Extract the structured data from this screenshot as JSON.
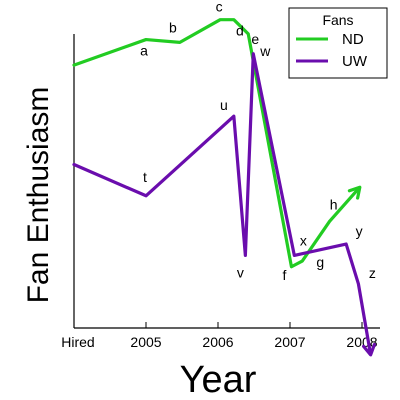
{
  "chart_data": {
    "type": "line",
    "xlabel": "Year",
    "ylabel": "Fan Enthusiasm",
    "x_tick_labels": [
      {
        "x": 0,
        "label": "Hired"
      },
      {
        "x": 1,
        "label": "2005"
      },
      {
        "x": 2,
        "label": "2006"
      },
      {
        "x": 3,
        "label": "2007"
      },
      {
        "x": 4,
        "label": "2008"
      }
    ],
    "xlim": [
      0,
      4.2
    ],
    "ylim": [
      0,
      10
    ],
    "grid": false,
    "legend_title": "Fans",
    "legend_position": "top-right",
    "series": [
      {
        "name": "ND",
        "color": "#22cc22",
        "arrow_end": true,
        "points": [
          {
            "x": 0.0,
            "y": 8.2,
            "label": ""
          },
          {
            "x": 1.0,
            "y": 9.1,
            "label": "a"
          },
          {
            "x": 1.47,
            "y": 9.0,
            "label": "b"
          },
          {
            "x": 2.03,
            "y": 9.8,
            "label": "c"
          },
          {
            "x": 2.22,
            "y": 9.8,
            "label": "d"
          },
          {
            "x": 2.42,
            "y": 9.3,
            "label": "e"
          },
          {
            "x": 3.02,
            "y": 1.1,
            "label": "f"
          },
          {
            "x": 3.17,
            "y": 1.3,
            "label": "g"
          },
          {
            "x": 3.55,
            "y": 2.7,
            "label": "h"
          },
          {
            "x": 3.97,
            "y": 3.9,
            "label": ""
          }
        ]
      },
      {
        "name": "UW",
        "color": "#6a0dad",
        "arrow_end": true,
        "points": [
          {
            "x": 0.0,
            "y": 4.7,
            "label": ""
          },
          {
            "x": 1.0,
            "y": 3.6,
            "label": "t"
          },
          {
            "x": 2.22,
            "y": 6.4,
            "label": "u"
          },
          {
            "x": 2.38,
            "y": 1.5,
            "label": "v"
          },
          {
            "x": 2.49,
            "y": 8.6,
            "label": "w"
          },
          {
            "x": 3.06,
            "y": 1.5,
            "label": "x"
          },
          {
            "x": 3.78,
            "y": 1.9,
            "label": "y"
          },
          {
            "x": 3.95,
            "y": 0.5,
            "label": "z"
          },
          {
            "x": 4.12,
            "y": -2.0,
            "label": ""
          }
        ]
      }
    ]
  }
}
